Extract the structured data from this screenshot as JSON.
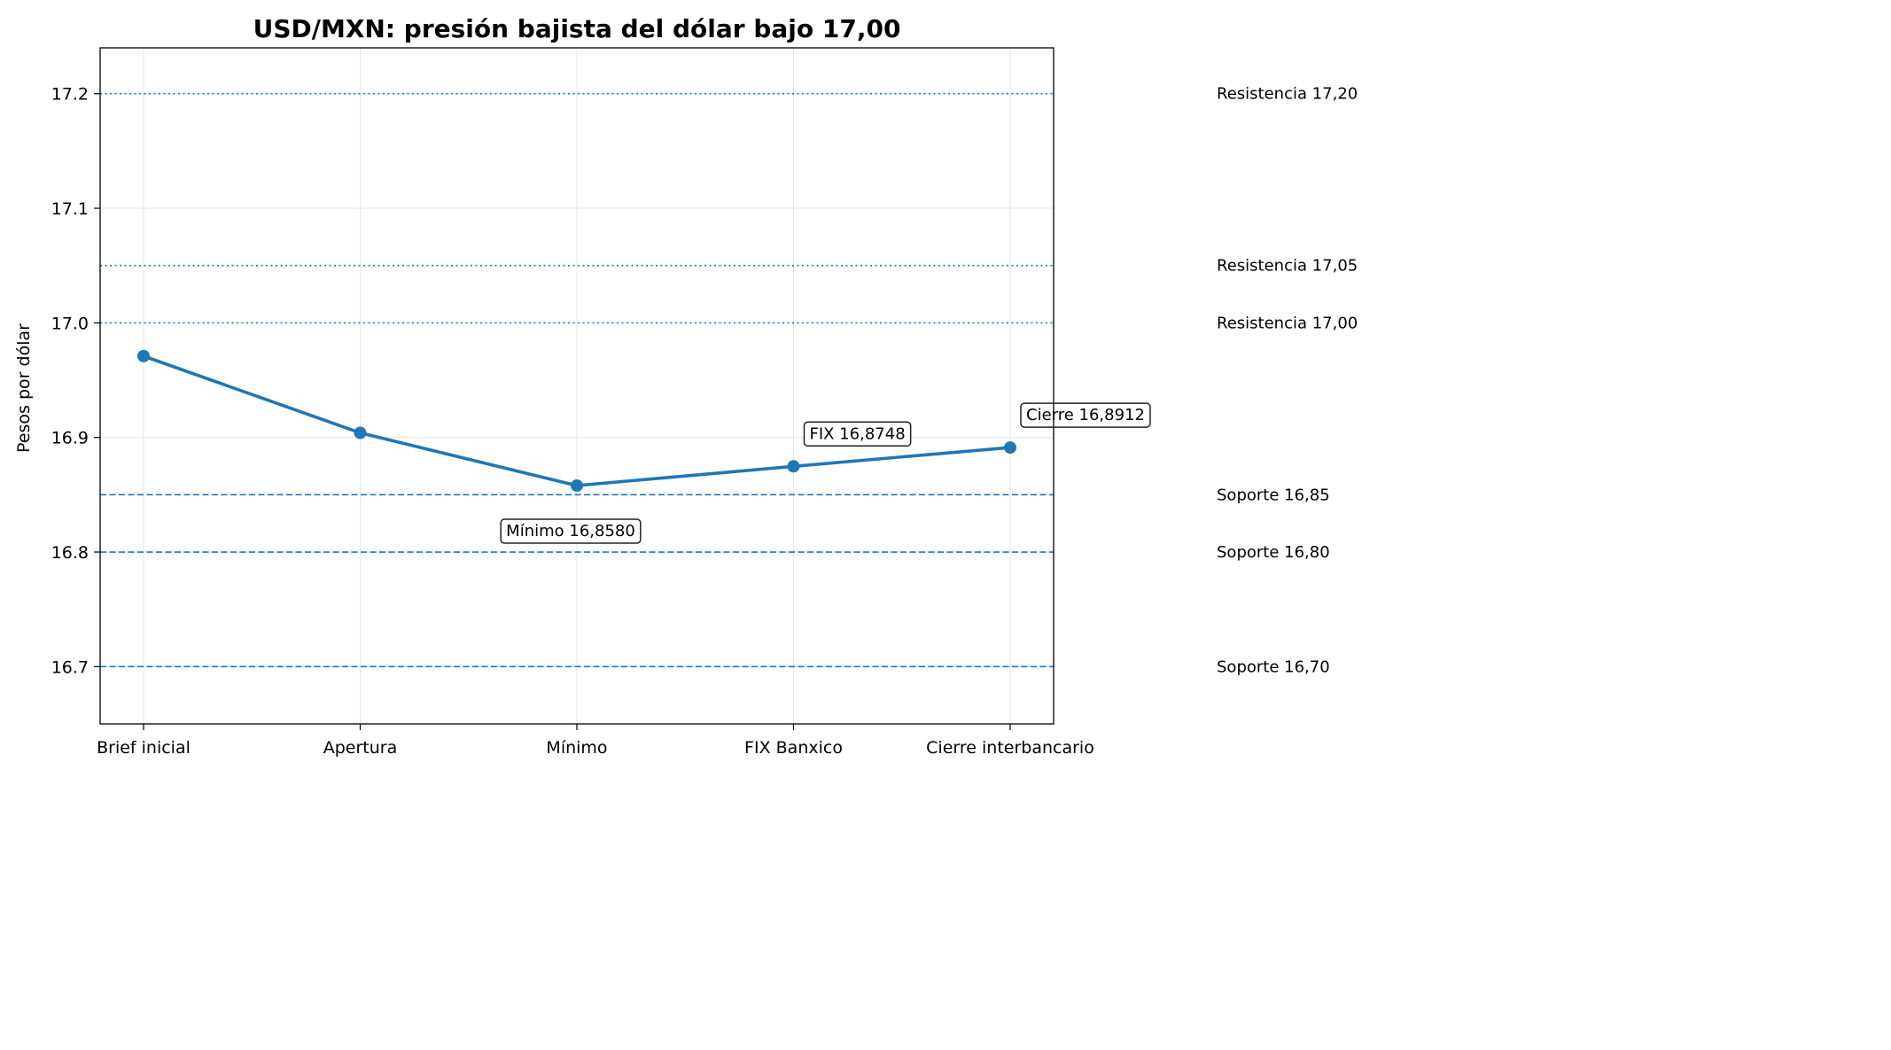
{
  "chart_data": {
    "type": "line",
    "title": "USD/MXN: presión bajista del dólar bajo 17,00",
    "xlabel": "",
    "ylabel": "Pesos por dólar",
    "categories": [
      "Brief inicial",
      "Apertura",
      "Mínimo",
      "FIX Banxico",
      "Cierre interbancario"
    ],
    "series": [
      {
        "values": [
          16.971,
          16.904,
          16.858,
          16.8748,
          16.8912
        ],
        "color": "#1f77b4"
      }
    ],
    "ylim": [
      16.65,
      17.24
    ],
    "yticks": [
      16.7,
      16.8,
      16.9,
      17.0,
      17.1,
      17.2
    ],
    "ytick_labels": [
      "16.7",
      "16.8",
      "16.9",
      "17.0",
      "17.1",
      "17.2"
    ],
    "grid": true,
    "reference_lines": [
      {
        "value": 17.2,
        "style": "dotted",
        "label": "Resistencia 17,20"
      },
      {
        "value": 17.05,
        "style": "dotted",
        "label": "Resistencia 17,05"
      },
      {
        "value": 17.0,
        "style": "dotted",
        "label": "Resistencia 17,00"
      },
      {
        "value": 16.85,
        "style": "dashed",
        "label": "Soporte 16,85"
      },
      {
        "value": 16.8,
        "style": "dashed",
        "label": "Soporte 16,80"
      },
      {
        "value": 16.7,
        "style": "dashed",
        "label": "Soporte 16,70"
      }
    ],
    "annotations": [
      {
        "category": "Mínimo",
        "value": 16.858,
        "text": "Mínimo 16,8580",
        "placement": "below"
      },
      {
        "category": "FIX Banxico",
        "value": 16.8748,
        "text": "FIX 16,8748",
        "placement": "above"
      },
      {
        "category": "Cierre interbancario",
        "value": 16.8912,
        "text": "Cierre 16,8912",
        "placement": "above"
      }
    ],
    "colors": {
      "line": "#1f77b4",
      "reference": "#1f77b4"
    }
  }
}
